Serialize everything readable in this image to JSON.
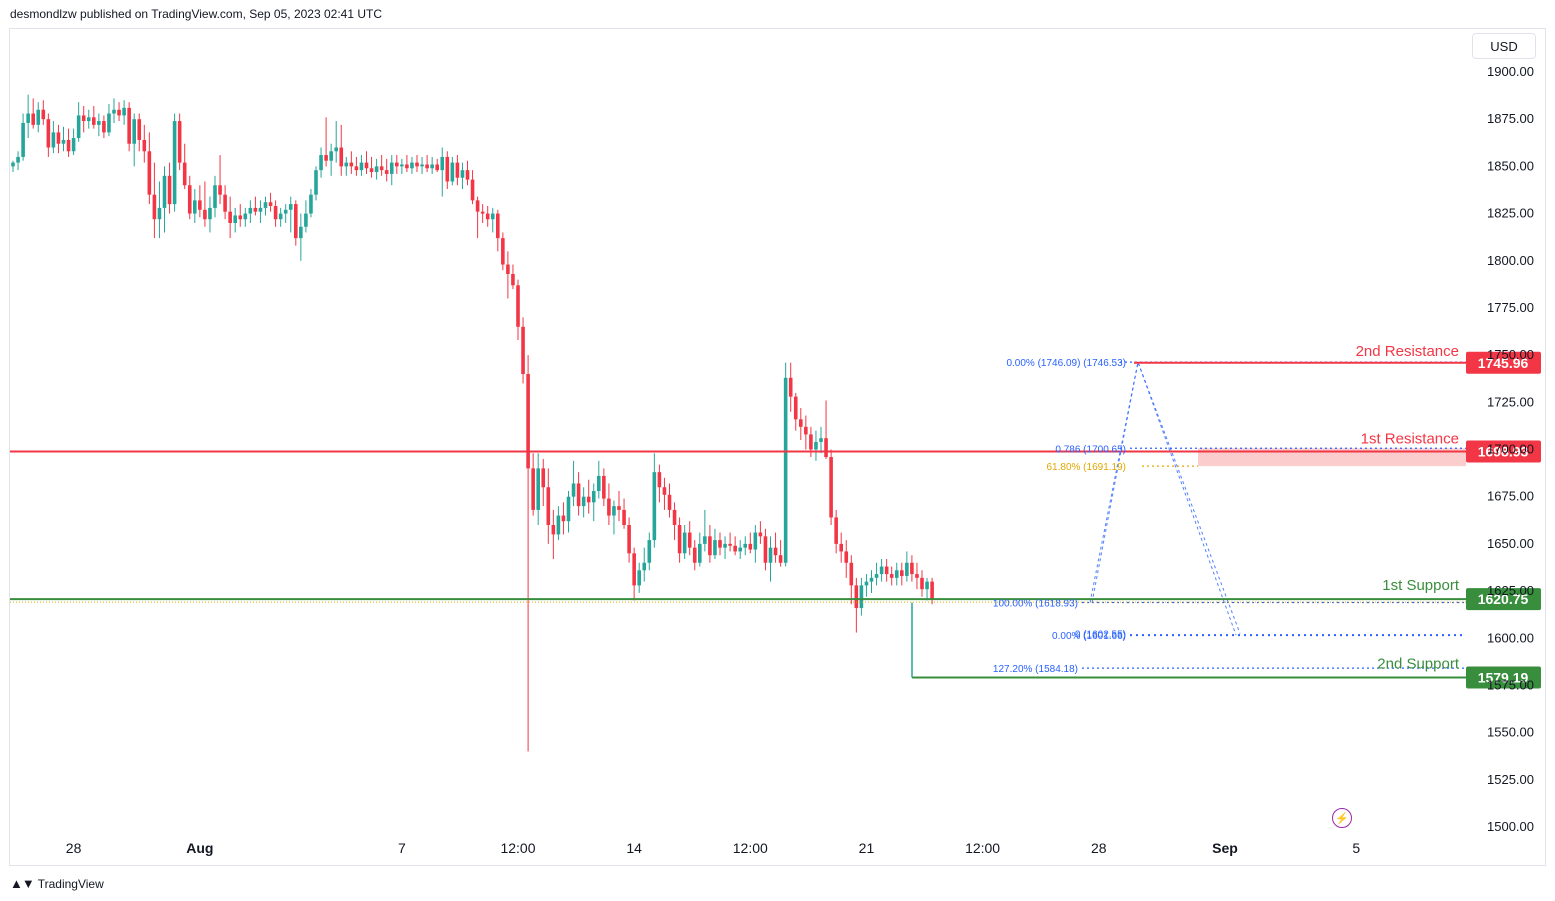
{
  "header": {
    "publisher_line": "desmondlzw published on TradingView.com, Sep 05, 2023 02:41 UTC"
  },
  "footer": {
    "brand": "TradingView",
    "logo_icon": "tradingview-logo-icon"
  },
  "currency_button": {
    "label": "USD"
  },
  "icons": {
    "alert_bolt": "lightning-icon"
  },
  "colors": {
    "up": "#26a69a",
    "down": "#f23645",
    "resistance": "#f23645",
    "support": "#388e3c",
    "fib": "#2962ff",
    "fib_gold": "#e0a800",
    "zone": "#f9b8b8"
  },
  "chart_data": {
    "type": "candlestick",
    "ylim": [
      1500,
      1900
    ],
    "y_ticks": [
      "1900.00",
      "1875.00",
      "1850.00",
      "1825.00",
      "1800.00",
      "1775.00",
      "1750.00",
      "1725.00",
      "1700.00",
      "1675.00",
      "1650.00",
      "1625.00",
      "1600.00",
      "1575.00",
      "1550.00",
      "1525.00",
      "1500.00"
    ],
    "x_ticks": [
      {
        "label": "28",
        "bar": 12
      },
      {
        "label": "Aug",
        "bar": 37
      },
      {
        "label": "7",
        "bar": 77
      },
      {
        "label": "12:00",
        "bar": 100
      },
      {
        "label": "14",
        "bar": 123
      },
      {
        "label": "12:00",
        "bar": 146
      },
      {
        "label": "21",
        "bar": 169
      },
      {
        "label": "12:00",
        "bar": 192
      },
      {
        "label": "28",
        "bar": 215
      },
      {
        "label": "Sep",
        "bar": 240
      },
      {
        "label": "5",
        "bar": 266
      }
    ],
    "candles_o_h_l_c": [
      [
        1850,
        1853,
        1847,
        1852
      ],
      [
        1852,
        1858,
        1848,
        1855
      ],
      [
        1855,
        1878,
        1853,
        1873
      ],
      [
        1873,
        1888,
        1865,
        1878
      ],
      [
        1878,
        1886,
        1870,
        1872
      ],
      [
        1872,
        1884,
        1868,
        1880
      ],
      [
        1880,
        1885,
        1872,
        1875
      ],
      [
        1875,
        1878,
        1855,
        1860
      ],
      [
        1860,
        1874,
        1857,
        1868
      ],
      [
        1868,
        1872,
        1857,
        1862
      ],
      [
        1862,
        1871,
        1858,
        1864
      ],
      [
        1864,
        1870,
        1855,
        1858
      ],
      [
        1858,
        1870,
        1856,
        1865
      ],
      [
        1865,
        1884,
        1863,
        1877
      ],
      [
        1877,
        1882,
        1868,
        1874
      ],
      [
        1874,
        1880,
        1870,
        1876
      ],
      [
        1876,
        1882,
        1870,
        1872
      ],
      [
        1872,
        1878,
        1866,
        1874
      ],
      [
        1874,
        1877,
        1865,
        1868
      ],
      [
        1868,
        1883,
        1866,
        1878
      ],
      [
        1878,
        1886,
        1873,
        1880
      ],
      [
        1880,
        1884,
        1874,
        1877
      ],
      [
        1877,
        1885,
        1872,
        1881
      ],
      [
        1881,
        1884,
        1858,
        1862
      ],
      [
        1862,
        1878,
        1850,
        1875
      ],
      [
        1875,
        1878,
        1858,
        1864
      ],
      [
        1864,
        1872,
        1852,
        1858
      ],
      [
        1858,
        1868,
        1830,
        1835
      ],
      [
        1835,
        1852,
        1812,
        1822
      ],
      [
        1822,
        1842,
        1812,
        1828
      ],
      [
        1828,
        1850,
        1815,
        1845
      ],
      [
        1845,
        1852,
        1825,
        1830
      ],
      [
        1830,
        1878,
        1826,
        1874
      ],
      [
        1874,
        1878,
        1848,
        1852
      ],
      [
        1852,
        1862,
        1838,
        1840
      ],
      [
        1840,
        1845,
        1822,
        1825
      ],
      [
        1825,
        1838,
        1820,
        1832
      ],
      [
        1832,
        1840,
        1823,
        1827
      ],
      [
        1827,
        1842,
        1818,
        1822
      ],
      [
        1822,
        1834,
        1815,
        1828
      ],
      [
        1828,
        1845,
        1823,
        1840
      ],
      [
        1840,
        1856,
        1830,
        1835
      ],
      [
        1835,
        1840,
        1822,
        1826
      ],
      [
        1826,
        1834,
        1812,
        1820
      ],
      [
        1820,
        1828,
        1815,
        1824
      ],
      [
        1824,
        1830,
        1818,
        1822
      ],
      [
        1822,
        1828,
        1818,
        1825
      ],
      [
        1825,
        1832,
        1820,
        1828
      ],
      [
        1828,
        1834,
        1824,
        1826
      ],
      [
        1826,
        1832,
        1820,
        1828
      ],
      [
        1828,
        1834,
        1824,
        1831
      ],
      [
        1831,
        1836,
        1826,
        1829
      ],
      [
        1829,
        1832,
        1818,
        1822
      ],
      [
        1822,
        1828,
        1818,
        1825
      ],
      [
        1825,
        1830,
        1820,
        1827
      ],
      [
        1827,
        1834,
        1815,
        1830
      ],
      [
        1830,
        1832,
        1808,
        1812
      ],
      [
        1812,
        1825,
        1800,
        1818
      ],
      [
        1818,
        1832,
        1815,
        1825
      ],
      [
        1825,
        1838,
        1823,
        1835
      ],
      [
        1835,
        1850,
        1832,
        1848
      ],
      [
        1848,
        1860,
        1844,
        1856
      ],
      [
        1856,
        1876,
        1850,
        1853
      ],
      [
        1853,
        1862,
        1845,
        1858
      ],
      [
        1858,
        1874,
        1852,
        1860
      ],
      [
        1860,
        1872,
        1845,
        1850
      ],
      [
        1850,
        1855,
        1845,
        1852
      ],
      [
        1852,
        1858,
        1846,
        1850
      ],
      [
        1850,
        1855,
        1845,
        1848
      ],
      [
        1848,
        1856,
        1845,
        1852
      ],
      [
        1852,
        1858,
        1846,
        1849
      ],
      [
        1849,
        1855,
        1844,
        1847
      ],
      [
        1847,
        1854,
        1843,
        1850
      ],
      [
        1850,
        1856,
        1845,
        1848
      ],
      [
        1848,
        1854,
        1842,
        1846
      ],
      [
        1846,
        1856,
        1840,
        1852
      ],
      [
        1852,
        1856,
        1846,
        1850
      ],
      [
        1850,
        1854,
        1846,
        1851
      ],
      [
        1851,
        1856,
        1847,
        1849
      ],
      [
        1849,
        1855,
        1846,
        1852
      ],
      [
        1852,
        1856,
        1847,
        1850
      ],
      [
        1850,
        1855,
        1846,
        1851
      ],
      [
        1851,
        1856,
        1847,
        1849
      ],
      [
        1849,
        1855,
        1846,
        1851
      ],
      [
        1851,
        1854,
        1847,
        1848
      ],
      [
        1848,
        1860,
        1834,
        1855
      ],
      [
        1855,
        1858,
        1838,
        1842
      ],
      [
        1842,
        1855,
        1840,
        1852
      ],
      [
        1852,
        1856,
        1840,
        1844
      ],
      [
        1844,
        1852,
        1838,
        1848
      ],
      [
        1848,
        1853,
        1840,
        1843
      ],
      [
        1843,
        1848,
        1830,
        1832
      ],
      [
        1832,
        1834,
        1812,
        1826
      ],
      [
        1826,
        1830,
        1820,
        1825
      ],
      [
        1825,
        1829,
        1818,
        1822
      ],
      [
        1822,
        1828,
        1815,
        1825
      ],
      [
        1825,
        1827,
        1805,
        1812
      ],
      [
        1812,
        1815,
        1795,
        1798
      ],
      [
        1798,
        1805,
        1780,
        1793
      ],
      [
        1793,
        1798,
        1785,
        1787
      ],
      [
        1787,
        1790,
        1758,
        1765
      ],
      [
        1765,
        1770,
        1735,
        1740
      ],
      [
        1740,
        1750,
        1540,
        1690
      ],
      [
        1690,
        1698,
        1665,
        1668
      ],
      [
        1668,
        1698,
        1660,
        1690
      ],
      [
        1690,
        1695,
        1670,
        1680
      ],
      [
        1680,
        1690,
        1650,
        1660
      ],
      [
        1660,
        1668,
        1642,
        1655
      ],
      [
        1655,
        1670,
        1652,
        1665
      ],
      [
        1665,
        1672,
        1655,
        1662
      ],
      [
        1662,
        1678,
        1656,
        1675
      ],
      [
        1675,
        1694,
        1670,
        1682
      ],
      [
        1682,
        1688,
        1665,
        1670
      ],
      [
        1670,
        1680,
        1664,
        1675
      ],
      [
        1675,
        1684,
        1666,
        1672
      ],
      [
        1672,
        1682,
        1662,
        1678
      ],
      [
        1678,
        1694,
        1674,
        1686
      ],
      [
        1686,
        1690,
        1670,
        1674
      ],
      [
        1674,
        1682,
        1660,
        1665
      ],
      [
        1665,
        1673,
        1655,
        1670
      ],
      [
        1670,
        1678,
        1662,
        1668
      ],
      [
        1668,
        1674,
        1658,
        1660
      ],
      [
        1660,
        1664,
        1640,
        1645
      ],
      [
        1645,
        1648,
        1620,
        1628
      ],
      [
        1628,
        1640,
        1624,
        1636
      ],
      [
        1636,
        1648,
        1630,
        1640
      ],
      [
        1640,
        1656,
        1636,
        1652
      ],
      [
        1652,
        1698,
        1648,
        1688
      ],
      [
        1688,
        1692,
        1672,
        1680
      ],
      [
        1680,
        1685,
        1668,
        1676
      ],
      [
        1676,
        1682,
        1664,
        1668
      ],
      [
        1668,
        1672,
        1652,
        1660
      ],
      [
        1660,
        1664,
        1640,
        1645
      ],
      [
        1645,
        1660,
        1642,
        1656
      ],
      [
        1656,
        1662,
        1644,
        1648
      ],
      [
        1648,
        1652,
        1636,
        1640
      ],
      [
        1640,
        1656,
        1638,
        1650
      ],
      [
        1650,
        1668,
        1646,
        1654
      ],
      [
        1654,
        1660,
        1640,
        1644
      ],
      [
        1644,
        1658,
        1642,
        1652
      ],
      [
        1652,
        1656,
        1644,
        1648
      ],
      [
        1648,
        1654,
        1642,
        1650
      ],
      [
        1650,
        1656,
        1646,
        1649
      ],
      [
        1649,
        1654,
        1644,
        1646
      ],
      [
        1646,
        1652,
        1642,
        1648
      ],
      [
        1648,
        1654,
        1644,
        1650
      ],
      [
        1650,
        1656,
        1645,
        1647
      ],
      [
        1647,
        1660,
        1640,
        1656
      ],
      [
        1656,
        1662,
        1650,
        1654
      ],
      [
        1654,
        1658,
        1636,
        1640
      ],
      [
        1640,
        1654,
        1630,
        1648
      ],
      [
        1648,
        1656,
        1640,
        1644
      ],
      [
        1644,
        1652,
        1638,
        1640
      ],
      [
        1640,
        1746,
        1638,
        1738
      ],
      [
        1738,
        1746,
        1720,
        1728
      ],
      [
        1728,
        1730,
        1710,
        1716
      ],
      [
        1716,
        1722,
        1705,
        1712
      ],
      [
        1712,
        1718,
        1700,
        1708
      ],
      [
        1708,
        1712,
        1696,
        1700
      ],
      [
        1700,
        1710,
        1694,
        1704
      ],
      [
        1704,
        1712,
        1698,
        1706
      ],
      [
        1706,
        1726,
        1695,
        1696
      ],
      [
        1696,
        1700,
        1660,
        1664
      ],
      [
        1664,
        1668,
        1645,
        1650
      ],
      [
        1650,
        1656,
        1640,
        1646
      ],
      [
        1646,
        1652,
        1632,
        1640
      ],
      [
        1640,
        1644,
        1618,
        1628
      ],
      [
        1628,
        1632,
        1603,
        1616
      ],
      [
        1616,
        1632,
        1612,
        1628
      ],
      [
        1628,
        1634,
        1622,
        1630
      ],
      [
        1630,
        1636,
        1624,
        1632
      ],
      [
        1632,
        1640,
        1628,
        1634
      ],
      [
        1634,
        1642,
        1630,
        1638
      ],
      [
        1638,
        1642,
        1630,
        1634
      ],
      [
        1634,
        1638,
        1628,
        1632
      ],
      [
        1632,
        1640,
        1628,
        1636
      ],
      [
        1636,
        1640,
        1628,
        1633
      ],
      [
        1633,
        1646,
        1630,
        1640
      ],
      [
        1640,
        1644,
        1630,
        1634
      ],
      [
        1634,
        1640,
        1626,
        1632
      ],
      [
        1632,
        1636,
        1622,
        1626
      ],
      [
        1626,
        1632,
        1620,
        1630
      ],
      [
        1630,
        1632,
        1618,
        1621
      ]
    ],
    "levels": [
      {
        "name": "2nd Resistance",
        "value": 1745.96,
        "label": "1745.96",
        "color_key": "resistance"
      },
      {
        "name": "1st Resistance",
        "value": 1698.93,
        "label": "1698.93",
        "color_key": "resistance"
      },
      {
        "name": "1st Support",
        "value": 1620.75,
        "label": "1620.75",
        "color_key": "support"
      },
      {
        "name": "2nd Support",
        "value": 1579.19,
        "label": "1579.19",
        "color_key": "support"
      }
    ],
    "fib_labels": [
      {
        "text": "0.00% (1746.09) (1746.53)",
        "value": 1746.3
      },
      {
        "text": "0.786 (1700.65)",
        "value": 1700.65
      },
      {
        "text": "61.80% (1691.19)",
        "value": 1691.19,
        "gold": true
      },
      {
        "text": "100.00% (1618.93)",
        "value": 1618.93
      },
      {
        "text": "0 (1602.55)",
        "value": 1602.55
      },
      {
        "text": "0.00% (1601.66)",
        "value": 1601.66
      },
      {
        "text": "127.20% (1584.18)",
        "value": 1584.18
      }
    ],
    "resistance_zone": [
      1691.19,
      1700.65
    ]
  }
}
